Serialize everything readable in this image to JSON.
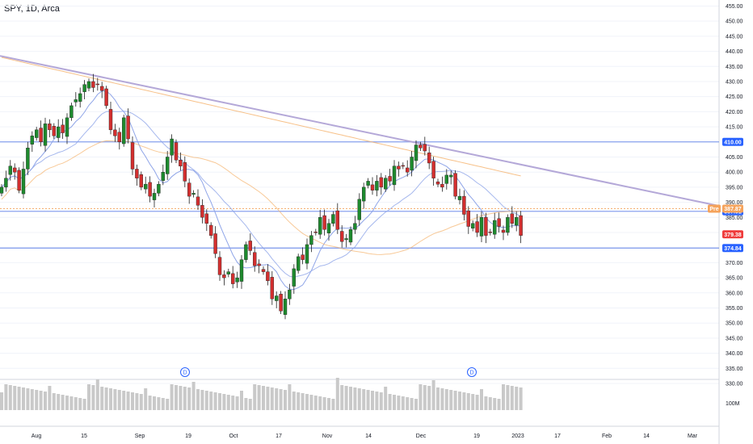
{
  "header": {
    "symbol": "SPY, 1D, Arca"
  },
  "price_axis": {
    "ticks": [
      "455.00",
      "450.00",
      "445.00",
      "440.00",
      "435.00",
      "430.00",
      "425.00",
      "420.00",
      "415.00",
      "410.00",
      "405.00",
      "400.00",
      "395.00",
      "390.00",
      "385.00",
      "380.00",
      "375.00",
      "370.00",
      "365.00",
      "360.00",
      "355.00",
      "350.00",
      "345.00",
      "340.00",
      "335.00",
      "330.00"
    ]
  },
  "volume_axis": {
    "label": "100M"
  },
  "time_axis": {
    "labels": [
      "Aug",
      "15",
      "Sep",
      "19",
      "Oct",
      "17",
      "Nov",
      "14",
      "Dec",
      "19",
      "2023",
      "17",
      "Feb",
      "14",
      "Mar"
    ]
  },
  "tags": {
    "level_410": "410.00",
    "level_387": "387.01",
    "pre_label": "Pre",
    "pre_price": "387.87",
    "last_price": "379.38",
    "level_374": "374.84"
  },
  "dividend_marker": "D",
  "colors": {
    "up": "#26a69a",
    "down": "#ef5350",
    "up_candle": "#1e8a2e",
    "down_candle": "#d32f2f",
    "hline": "#5b7de8",
    "trendline": "#b4a8d8",
    "ma_blue": "#8fa5e8",
    "ma_orange": "#f5b26b"
  },
  "chart_data": {
    "type": "candlestick",
    "title": "SPY, 1D, Arca",
    "ylim": [
      330,
      457
    ],
    "horizontal_levels": [
      410.0,
      387.01,
      374.84
    ],
    "last_price": 379.38,
    "premarket_price": 387.87,
    "x_labels": [
      "Aug",
      "15",
      "Sep",
      "19",
      "Oct",
      "17",
      "Nov",
      "14",
      "Dec",
      "19",
      "2023",
      "17",
      "Feb",
      "14",
      "Mar"
    ],
    "closes": [
      395,
      398,
      402,
      400,
      394,
      401,
      408,
      412,
      414,
      410,
      416,
      414,
      412,
      415,
      413,
      418,
      422,
      424,
      426,
      429,
      430,
      428,
      429,
      427,
      422,
      414,
      412,
      410,
      418,
      411,
      401,
      398,
      395,
      396,
      392,
      393,
      396,
      400,
      405,
      411,
      404,
      402,
      397,
      392,
      393,
      389,
      385,
      383,
      379,
      373,
      366,
      365,
      367,
      363,
      365,
      371,
      376,
      374,
      369,
      369,
      367,
      364,
      358,
      359,
      354,
      358,
      361,
      368,
      372,
      371,
      376,
      379,
      380,
      385,
      381,
      383,
      386,
      381,
      377,
      378,
      381,
      383,
      391,
      395,
      397,
      394,
      397,
      395,
      398,
      397,
      402,
      401,
      402,
      400,
      405,
      409,
      408,
      407,
      403,
      398,
      396,
      395,
      399,
      399,
      392,
      392,
      386,
      382,
      383,
      380,
      385,
      379,
      380,
      384,
      382,
      380,
      385,
      383,
      385,
      379
    ],
    "volume_note": "daily volume bars, ~100M scale"
  }
}
